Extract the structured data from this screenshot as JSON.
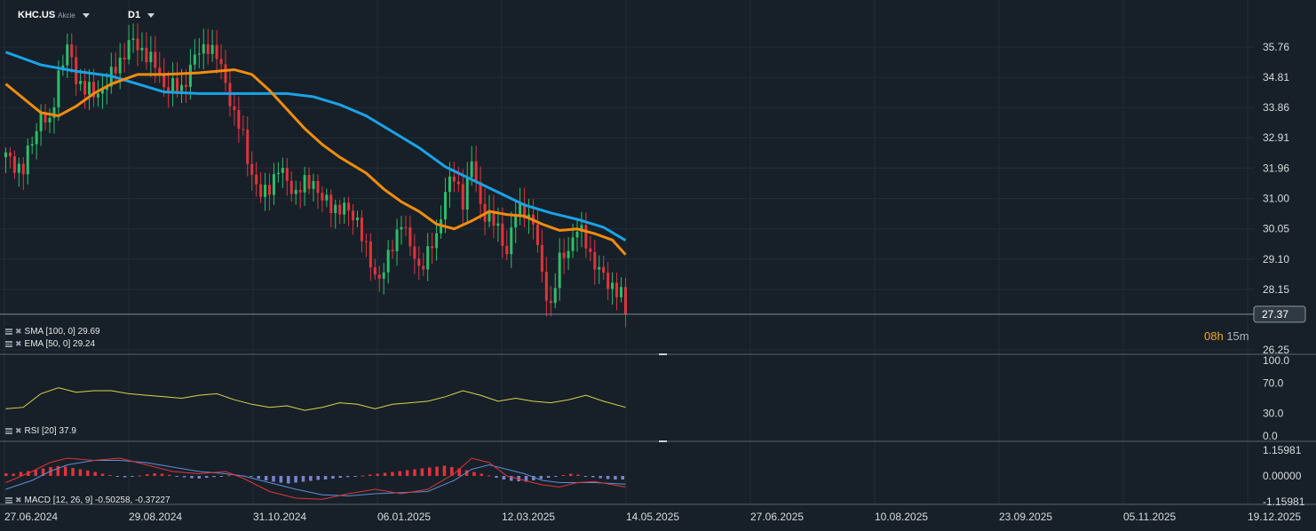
{
  "header": {
    "symbol": "KHC.US",
    "instrument_type": "Akcie",
    "interval": "D1"
  },
  "indicators": {
    "sma_label": "SMA [100, 0] 29.69",
    "ema_label": "EMA [50, 0] 29.24",
    "rsi_label": "RSI [20] 37.9",
    "macd_label": "MACD [12, 26, 9] -0.50258, -0.37227"
  },
  "countdown": {
    "hours": "08h",
    "minutes": "15m"
  },
  "colors": {
    "background": "#172028",
    "candle_up": "#2ebd6a",
    "candle_down": "#e0343c",
    "sma": "#1aa3e8",
    "ema": "#f28c0f",
    "rsi": "#d8d44a",
    "macd_line": "#e0343c",
    "signal_line": "#5b8fd8",
    "histogram_positive": "#e0343c",
    "histogram_negative": "#7b83d4"
  },
  "chart_data": {
    "type": "candlestick",
    "price_axis_ticks": [
      "35.76",
      "34.81",
      "33.86",
      "32.91",
      "31.96",
      "31.00",
      "30.05",
      "29.10",
      "28.15",
      "26.25"
    ],
    "current_price": "27.37",
    "price_range": [
      26.25,
      36.4
    ],
    "date_axis_ticks": [
      "27.06.2024",
      "29.08.2024",
      "31.10.2024",
      "06.01.2025",
      "12.03.2025",
      "14.05.2025",
      "27.06.2025",
      "10.08.2025",
      "23.09.2025",
      "05.11.2025",
      "19.12.2025"
    ],
    "close_path": [
      [
        0,
        32.3
      ],
      [
        4,
        31.9
      ],
      [
        8,
        33.7
      ],
      [
        10,
        33.2
      ],
      [
        12,
        35.0
      ],
      [
        14,
        35.7
      ],
      [
        16,
        34.8
      ],
      [
        20,
        34.2
      ],
      [
        24,
        34.8
      ],
      [
        28,
        35.9
      ],
      [
        32,
        35.6
      ],
      [
        36,
        34.6
      ],
      [
        40,
        34.4
      ],
      [
        42,
        35.2
      ],
      [
        46,
        35.9
      ],
      [
        48,
        35.4
      ],
      [
        50,
        34.7
      ],
      [
        52,
        33.6
      ],
      [
        54,
        32.9
      ],
      [
        56,
        31.8
      ],
      [
        58,
        31.0
      ],
      [
        62,
        31.9
      ],
      [
        66,
        31.2
      ],
      [
        70,
        31.6
      ],
      [
        72,
        30.9
      ],
      [
        76,
        30.7
      ],
      [
        80,
        30.4
      ],
      [
        82,
        29.3
      ],
      [
        84,
        28.6
      ],
      [
        86,
        28.7
      ],
      [
        88,
        29.5
      ],
      [
        90,
        30.4
      ],
      [
        92,
        29.4
      ],
      [
        94,
        28.9
      ],
      [
        96,
        29.2
      ],
      [
        98,
        29.8
      ],
      [
        100,
        31.3
      ],
      [
        102,
        31.6
      ],
      [
        104,
        31.0
      ],
      [
        106,
        32.1
      ],
      [
        108,
        30.8
      ],
      [
        110,
        30.4
      ],
      [
        112,
        30.0
      ],
      [
        114,
        29.4
      ],
      [
        116,
        30.5
      ],
      [
        118,
        30.7
      ],
      [
        120,
        30.2
      ],
      [
        122,
        28.6
      ],
      [
        124,
        27.6
      ],
      [
        126,
        29.0
      ],
      [
        128,
        29.5
      ],
      [
        130,
        30.0
      ],
      [
        132,
        29.7
      ],
      [
        134,
        28.9
      ],
      [
        136,
        28.5
      ],
      [
        138,
        28.3
      ],
      [
        140,
        27.9
      ],
      [
        141,
        27.37
      ]
    ],
    "sma_100_path": [
      [
        0,
        35.6
      ],
      [
        8,
        35.2
      ],
      [
        16,
        35.0
      ],
      [
        24,
        34.85
      ],
      [
        30,
        34.6
      ],
      [
        36,
        34.35
      ],
      [
        44,
        34.3
      ],
      [
        56,
        34.3
      ],
      [
        64,
        34.3
      ],
      [
        70,
        34.2
      ],
      [
        76,
        33.95
      ],
      [
        82,
        33.6
      ],
      [
        88,
        33.1
      ],
      [
        94,
        32.6
      ],
      [
        100,
        32.0
      ],
      [
        106,
        31.6
      ],
      [
        112,
        31.2
      ],
      [
        118,
        30.8
      ],
      [
        124,
        30.55
      ],
      [
        130,
        30.35
      ],
      [
        136,
        30.1
      ],
      [
        141,
        29.69
      ]
    ],
    "ema_50_path": [
      [
        0,
        34.6
      ],
      [
        8,
        33.7
      ],
      [
        12,
        33.6
      ],
      [
        16,
        33.9
      ],
      [
        20,
        34.3
      ],
      [
        24,
        34.6
      ],
      [
        30,
        34.9
      ],
      [
        36,
        34.9
      ],
      [
        44,
        34.95
      ],
      [
        52,
        35.05
      ],
      [
        56,
        34.9
      ],
      [
        60,
        34.4
      ],
      [
        64,
        33.8
      ],
      [
        68,
        33.2
      ],
      [
        72,
        32.7
      ],
      [
        76,
        32.3
      ],
      [
        82,
        31.8
      ],
      [
        86,
        31.3
      ],
      [
        90,
        30.9
      ],
      [
        94,
        30.6
      ],
      [
        98,
        30.2
      ],
      [
        102,
        30.05
      ],
      [
        106,
        30.3
      ],
      [
        110,
        30.6
      ],
      [
        114,
        30.5
      ],
      [
        118,
        30.45
      ],
      [
        122,
        30.2
      ],
      [
        126,
        30.0
      ],
      [
        130,
        30.05
      ],
      [
        134,
        29.9
      ],
      [
        138,
        29.7
      ],
      [
        141,
        29.24
      ]
    ],
    "rsi_panel": {
      "axis_ticks": [
        "100.0",
        "70.0",
        "30.0",
        "0.0"
      ],
      "range": [
        0,
        100
      ],
      "path": [
        [
          0,
          36
        ],
        [
          4,
          38
        ],
        [
          8,
          56
        ],
        [
          12,
          64
        ],
        [
          16,
          58
        ],
        [
          20,
          60
        ],
        [
          24,
          60
        ],
        [
          28,
          56
        ],
        [
          32,
          54
        ],
        [
          36,
          52
        ],
        [
          40,
          50
        ],
        [
          44,
          54
        ],
        [
          48,
          56
        ],
        [
          52,
          48
        ],
        [
          56,
          42
        ],
        [
          60,
          38
        ],
        [
          64,
          40
        ],
        [
          68,
          34
        ],
        [
          72,
          38
        ],
        [
          76,
          44
        ],
        [
          80,
          42
        ],
        [
          84,
          36
        ],
        [
          88,
          42
        ],
        [
          92,
          44
        ],
        [
          96,
          46
        ],
        [
          100,
          52
        ],
        [
          104,
          60
        ],
        [
          108,
          54
        ],
        [
          112,
          46
        ],
        [
          116,
          50
        ],
        [
          120,
          46
        ],
        [
          124,
          44
        ],
        [
          128,
          48
        ],
        [
          132,
          54
        ],
        [
          136,
          46
        ],
        [
          141,
          38
        ]
      ]
    },
    "macd_panel": {
      "axis_ticks": [
        "1.15981",
        "0.00000",
        "-1.15981"
      ],
      "range": [
        -1.15981,
        1.15981
      ],
      "histogram": [
        0.12,
        0.1,
        0.18,
        0.22,
        0.28,
        0.34,
        0.4,
        0.45,
        0.42,
        0.36,
        0.3,
        0.25,
        0.18,
        0.1,
        0.04,
        -0.03,
        -0.06,
        -0.03,
        0.02,
        0.08,
        0.12,
        0.1,
        0.05,
        -0.02,
        -0.06,
        -0.1,
        -0.12,
        -0.08,
        -0.05,
        -0.02,
        0.03,
        0.05,
        0.02,
        -0.04,
        -0.12,
        -0.2,
        -0.26,
        -0.3,
        -0.34,
        -0.3,
        -0.26,
        -0.22,
        -0.18,
        -0.16,
        -0.12,
        -0.08,
        -0.05,
        -0.02,
        0.02,
        0.06,
        0.1,
        0.14,
        0.18,
        0.22,
        0.26,
        0.3,
        0.34,
        0.38,
        0.42,
        0.46,
        0.4,
        0.34,
        0.26,
        0.18,
        0.1,
        0.02,
        -0.08,
        -0.16,
        -0.22,
        -0.24,
        -0.26,
        -0.2,
        -0.14,
        -0.08,
        -0.02,
        0.04,
        0.1,
        0.06,
        -0.02,
        -0.06,
        -0.1,
        -0.14,
        -0.16,
        -0.16
      ],
      "macd_path": [
        [
          0,
          -0.3
        ],
        [
          6,
          0.2
        ],
        [
          10,
          0.6
        ],
        [
          14,
          0.8
        ],
        [
          20,
          0.7
        ],
        [
          26,
          0.8
        ],
        [
          32,
          0.5
        ],
        [
          38,
          0.2
        ],
        [
          44,
          0.1
        ],
        [
          50,
          0.2
        ],
        [
          54,
          -0.1
        ],
        [
          60,
          -0.7
        ],
        [
          66,
          -1.0
        ],
        [
          72,
          -1.05
        ],
        [
          78,
          -0.8
        ],
        [
          84,
          -0.6
        ],
        [
          90,
          -0.8
        ],
        [
          96,
          -0.6
        ],
        [
          102,
          0.1
        ],
        [
          106,
          0.8
        ],
        [
          110,
          0.6
        ],
        [
          114,
          0.0
        ],
        [
          118,
          -0.2
        ],
        [
          122,
          -0.4
        ],
        [
          126,
          -0.5
        ],
        [
          130,
          -0.3
        ],
        [
          134,
          -0.25
        ],
        [
          141,
          -0.5
        ]
      ],
      "signal_path": [
        [
          0,
          -0.6
        ],
        [
          6,
          -0.2
        ],
        [
          10,
          0.2
        ],
        [
          14,
          0.5
        ],
        [
          20,
          0.7
        ],
        [
          26,
          0.7
        ],
        [
          32,
          0.6
        ],
        [
          38,
          0.4
        ],
        [
          44,
          0.2
        ],
        [
          50,
          0.1
        ],
        [
          54,
          0.0
        ],
        [
          60,
          -0.3
        ],
        [
          66,
          -0.6
        ],
        [
          72,
          -0.85
        ],
        [
          78,
          -0.9
        ],
        [
          84,
          -0.8
        ],
        [
          90,
          -0.75
        ],
        [
          96,
          -0.7
        ],
        [
          102,
          -0.2
        ],
        [
          106,
          0.3
        ],
        [
          110,
          0.5
        ],
        [
          114,
          0.3
        ],
        [
          118,
          0.1
        ],
        [
          122,
          -0.2
        ],
        [
          126,
          -0.3
        ],
        [
          130,
          -0.3
        ],
        [
          134,
          -0.3
        ],
        [
          141,
          -0.37
        ]
      ]
    }
  }
}
